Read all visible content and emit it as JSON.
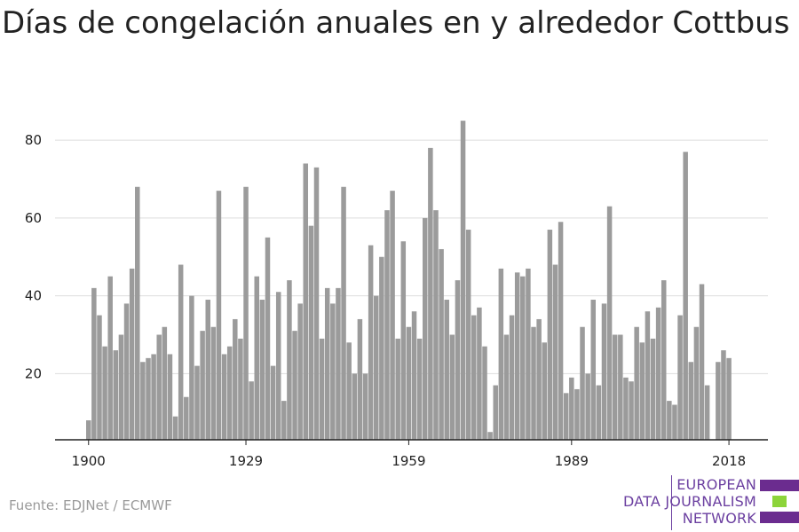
{
  "chart_data": {
    "type": "bar",
    "title": "Días de congelación anuales en y alrededor Cottbus",
    "xlabel": "",
    "ylabel": "",
    "x_start": 1900,
    "x_end": 2018,
    "values": [
      8,
      42,
      35,
      27,
      45,
      26,
      30,
      38,
      47,
      68,
      23,
      24,
      25,
      30,
      32,
      25,
      9,
      48,
      14,
      40,
      22,
      31,
      39,
      32,
      67,
      25,
      27,
      34,
      29,
      68,
      18,
      45,
      39,
      55,
      22,
      41,
      13,
      44,
      31,
      38,
      74,
      58,
      73,
      29,
      42,
      38,
      42,
      68,
      28,
      20,
      34,
      20,
      53,
      40,
      50,
      62,
      67,
      29,
      54,
      32,
      36,
      29,
      60,
      78,
      62,
      52,
      39,
      30,
      44,
      85,
      57,
      35,
      37,
      27,
      5,
      17,
      47,
      30,
      35,
      46,
      45,
      47,
      32,
      34,
      28,
      57,
      48,
      59,
      15,
      19,
      16,
      32,
      20,
      39,
      17,
      38,
      63,
      30,
      30,
      19,
      18,
      32,
      28,
      36,
      29,
      37,
      44,
      13,
      12,
      35,
      77,
      23,
      32,
      43,
      17,
      3,
      23,
      26,
      24
    ],
    "x_ticks": [
      "1900",
      "1929",
      "1959",
      "1989",
      "2018"
    ],
    "y_ticks": [
      "20",
      "40",
      "60",
      "80"
    ],
    "ylim": [
      3,
      88
    ],
    "grid": true,
    "bar_color": "#9b9b9b"
  },
  "source": "Fuente: EDJNet / ECMWF",
  "logo": {
    "lines": [
      "EUROPEAN",
      "DATA JOURNALISM",
      "NETWORK"
    ],
    "text_color": "#6b3fa0",
    "bar_colors": [
      "#6b2c8f",
      "#8cd43a",
      "#6b2c8f"
    ]
  }
}
